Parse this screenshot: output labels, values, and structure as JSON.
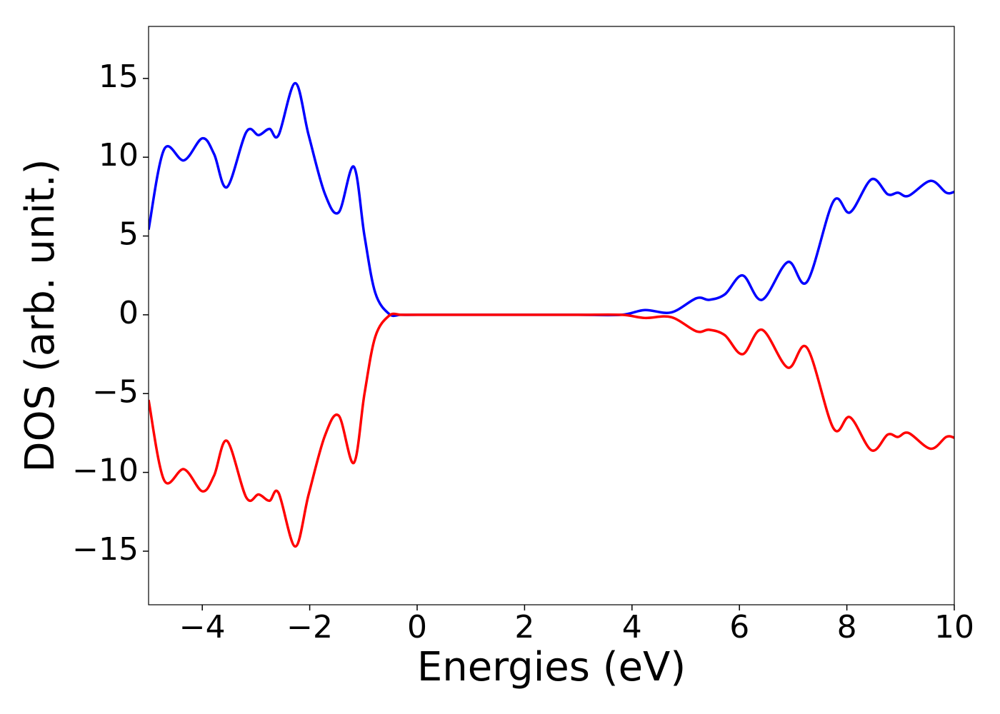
{
  "chart_data": {
    "type": "line",
    "xlabel": "Energies (eV)",
    "ylabel": "DOS (arb. unit.)",
    "x": [
      -5,
      -4.71,
      -4.34,
      -4.0,
      -3.78,
      -3.54,
      -3.18,
      -2.95,
      -2.75,
      -2.58,
      -2.27,
      -2.02,
      -1.72,
      -1.46,
      -1.18,
      -0.98,
      -0.78,
      -0.52,
      -0.3,
      0,
      1,
      2,
      3,
      3.8,
      4.24,
      4.73,
      5.2,
      5.44,
      5.73,
      6.06,
      6.42,
      6.9,
      7.26,
      7.75,
      8.06,
      8.46,
      8.76,
      8.95,
      9.15,
      9.56,
      9.85,
      10
    ],
    "series": [
      {
        "color": "#0000ff",
        "values": [
          5.4,
          10.5,
          9.8,
          11.2,
          10.2,
          8.1,
          11.6,
          11.4,
          11.8,
          11.4,
          14.7,
          11.4,
          7.7,
          6.5,
          9.4,
          5.0,
          1.4,
          0.05,
          0,
          0,
          0,
          0,
          0,
          0,
          0.3,
          0.15,
          1.05,
          0.95,
          1.3,
          2.5,
          0.95,
          3.35,
          2.1,
          7.2,
          6.5,
          8.6,
          7.65,
          7.75,
          7.55,
          8.5,
          7.75,
          7.8
        ]
      },
      {
        "color": "#ff0000",
        "values": [
          -5.4,
          -10.5,
          -9.8,
          -11.2,
          -10.2,
          -8.0,
          -11.6,
          -11.4,
          -11.8,
          -11.3,
          -14.7,
          -11.4,
          -7.7,
          -6.4,
          -9.4,
          -5.0,
          -1.4,
          -0.05,
          0,
          0,
          0,
          0,
          0,
          0,
          -0.2,
          -0.15,
          -1.05,
          -0.95,
          -1.3,
          -2.5,
          -0.95,
          -3.35,
          -2.1,
          -7.2,
          -6.5,
          -8.6,
          -7.6,
          -7.75,
          -7.5,
          -8.5,
          -7.75,
          -7.8
        ]
      }
    ],
    "xlim": [
      -5,
      10
    ],
    "ylim": [
      -18.4,
      18.3
    ],
    "xticks": [
      {
        "value": -4,
        "label": "−4"
      },
      {
        "value": -2,
        "label": "−2"
      },
      0,
      2,
      4,
      6,
      8,
      10
    ],
    "yticks": [
      {
        "value": -15,
        "label": "−15"
      },
      {
        "value": -10,
        "label": "−10"
      },
      {
        "value": -5,
        "label": "−5"
      },
      0,
      5,
      10,
      15
    ]
  }
}
